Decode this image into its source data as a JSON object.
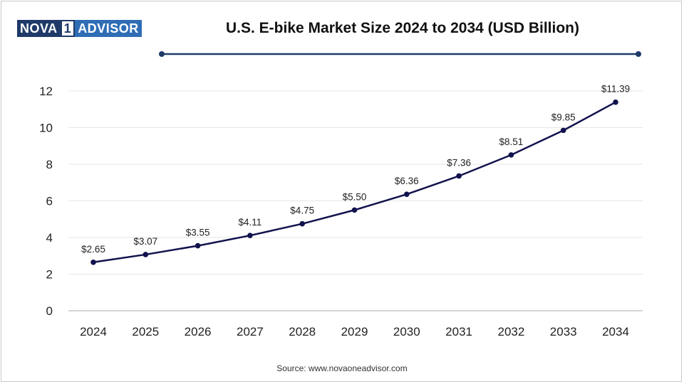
{
  "logo": {
    "left": "NOVA",
    "mid": "1",
    "right": "ADVISOR"
  },
  "title": "U.S. E-bike Market Size 2024 to 2034 (USD Billion)",
  "source": "Source: www.novaoneadvisor.com",
  "colors": {
    "line": "#12124e",
    "rule": "#1f3a68",
    "grid": "#e6e6e6",
    "axis": "#bdbdbd"
  },
  "chart_data": {
    "type": "line",
    "title": "U.S. E-bike Market Size 2024 to 2034 (USD Billion)",
    "xlabel": "",
    "ylabel": "",
    "categories": [
      "2024",
      "2025",
      "2026",
      "2027",
      "2028",
      "2029",
      "2030",
      "2031",
      "2032",
      "2033",
      "2034"
    ],
    "values": [
      2.65,
      3.07,
      3.55,
      4.11,
      4.75,
      5.5,
      6.36,
      7.36,
      8.51,
      9.85,
      11.39
    ],
    "data_labels": [
      "$2.65",
      "$3.07",
      "$3.55",
      "$4.11",
      "$4.75",
      "$5.50",
      "$6.36",
      "$7.36",
      "$8.51",
      "$9.85",
      "$11.39"
    ],
    "yticks": [
      0,
      2,
      4,
      6,
      8,
      10,
      12
    ],
    "ylim": [
      0,
      12
    ],
    "grid": true,
    "legend": "none"
  }
}
